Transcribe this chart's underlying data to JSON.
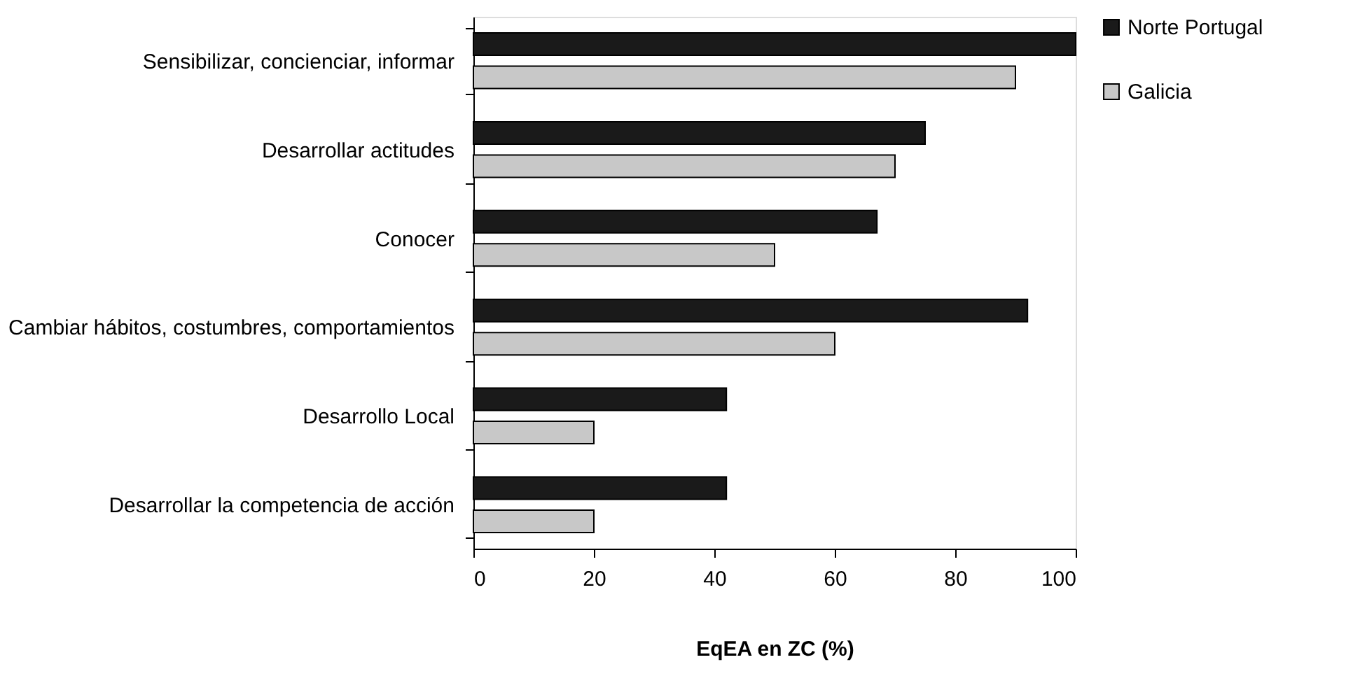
{
  "chart_data": {
    "type": "bar",
    "orientation": "horizontal",
    "xlabel": "EqEA en ZC (%)",
    "categories": [
      "Sensibilizar, concienciar, informar",
      "Desarrollar actitudes",
      "Conocer",
      "Cambiar hábitos, costumbres, comportamientos",
      "Desarrollo Local",
      "Desarrollar la competencia de acción"
    ],
    "series": [
      {
        "name": "Norte Portugal",
        "color": "#1a1a1a",
        "values": [
          100,
          75,
          67,
          92,
          42,
          42
        ]
      },
      {
        "name": "Galicia",
        "color": "#c8c8c8",
        "values": [
          90,
          70,
          50,
          60,
          20,
          20
        ]
      }
    ],
    "xlim": [
      0,
      100
    ],
    "xticks": [
      0,
      20,
      40,
      60,
      80,
      100
    ],
    "grid": false,
    "legend": "right"
  }
}
